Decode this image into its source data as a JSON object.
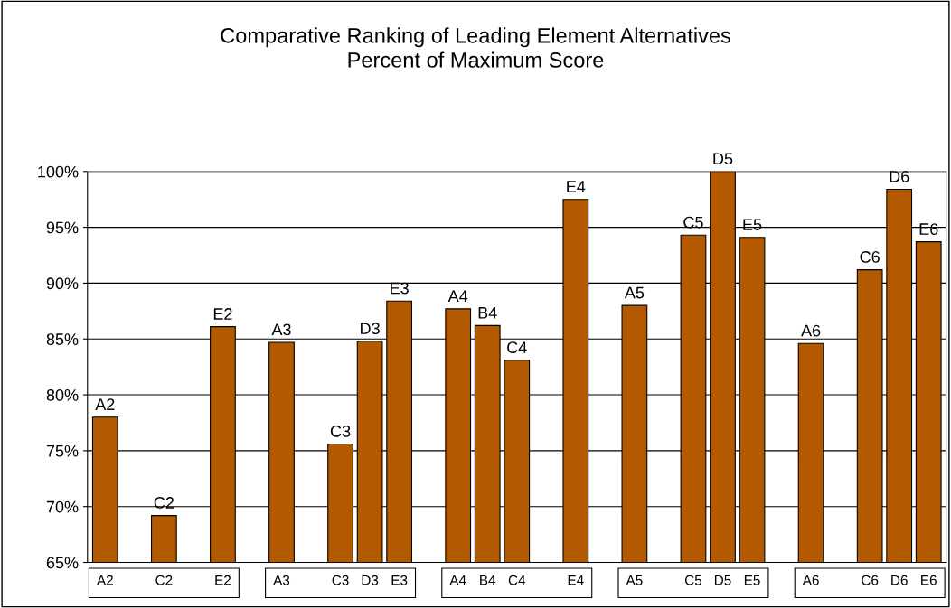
{
  "chart_data": {
    "type": "bar",
    "title": "Comparative Ranking of Leading Element Alternatives\nPercent of Maximum Score",
    "categories": [
      "A2",
      null,
      "C2",
      null,
      "E2",
      null,
      "A3",
      null,
      "C3",
      "D3",
      "E3",
      null,
      "A4",
      "B4",
      "C4",
      null,
      "E4",
      null,
      "A5",
      null,
      "C5",
      "D5",
      "E5",
      null,
      "A6",
      null,
      "C6",
      "D6",
      "E6"
    ],
    "values": [
      78.0,
      null,
      69.2,
      null,
      86.1,
      null,
      84.7,
      null,
      75.6,
      84.8,
      88.4,
      null,
      87.7,
      86.2,
      83.1,
      null,
      97.5,
      null,
      88.0,
      null,
      94.3,
      100.0,
      94.1,
      null,
      84.6,
      null,
      91.2,
      98.4,
      93.7
    ],
    "value_labels": [
      "A2",
      null,
      "C2",
      null,
      "E2",
      null,
      "A3",
      null,
      "C3",
      "D3",
      "E3",
      null,
      "A4",
      "B4",
      "C4",
      null,
      "E4",
      null,
      "A5",
      null,
      "C5",
      "D5",
      "E5",
      null,
      "A6",
      null,
      "C6",
      "D6",
      "E6"
    ],
    "color": "#b35a00",
    "ylim": [
      65,
      100
    ],
    "yticks": [
      {
        "value": 65,
        "label": "65%"
      },
      {
        "value": 70,
        "label": "70%"
      },
      {
        "value": 75,
        "label": "75%"
      },
      {
        "value": 80,
        "label": "80%"
      },
      {
        "value": 85,
        "label": "85%"
      },
      {
        "value": 90,
        "label": "90%"
      },
      {
        "value": 95,
        "label": "95%"
      },
      {
        "value": 100,
        "label": "100%"
      }
    ],
    "grid": "y"
  }
}
